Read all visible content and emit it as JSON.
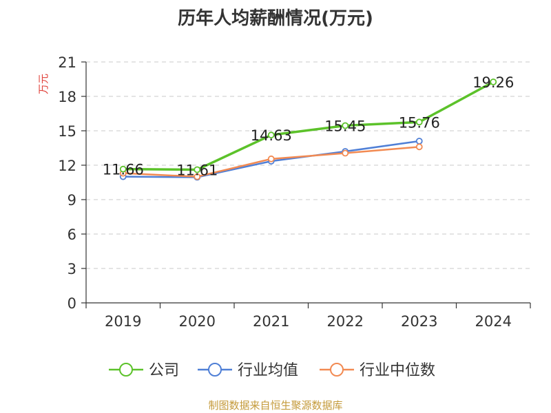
{
  "title": "历年人均薪酬情况(万元)",
  "footer": "制图数据来自恒生聚源数据库",
  "chart_data": {
    "type": "line",
    "title": "历年人均薪酬情况(万元)",
    "ylabel": "万元",
    "xlabel": "",
    "categories": [
      "2019",
      "2020",
      "2021",
      "2022",
      "2023",
      "2024"
    ],
    "ylim": [
      0,
      21
    ],
    "yticks": [
      0,
      3,
      6,
      9,
      12,
      15,
      18,
      21
    ],
    "grid": true,
    "legend_position": "bottom",
    "series": [
      {
        "name": "公司",
        "color": "#5cc22a",
        "values": [
          11.66,
          11.61,
          14.63,
          15.45,
          15.76,
          19.26
        ],
        "show_labels": true,
        "labels": [
          "11.66",
          "11.61",
          "14.63",
          "15.45",
          "15.76",
          "19.26"
        ]
      },
      {
        "name": "行业均值",
        "color": "#4f7fd6",
        "values": [
          11.0,
          10.95,
          12.35,
          13.2,
          14.1,
          null
        ],
        "show_labels": false
      },
      {
        "name": "行业中位数",
        "color": "#f28a52",
        "values": [
          11.3,
          11.0,
          12.55,
          13.05,
          13.6,
          null
        ],
        "show_labels": false
      }
    ]
  }
}
